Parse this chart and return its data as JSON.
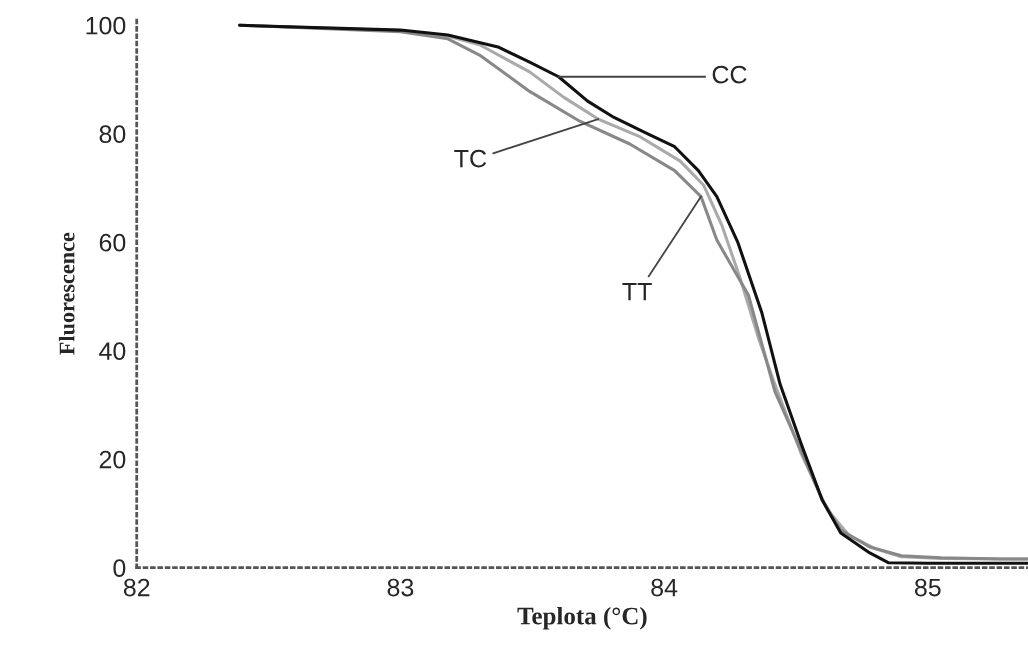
{
  "chart_data": {
    "type": "line",
    "xlabel": "Teplota (°C)",
    "ylabel": "Fluorescence",
    "xlim": [
      82,
      85.38
    ],
    "ylim": [
      0,
      101
    ],
    "xticks": [
      82,
      83,
      84,
      85
    ],
    "yticks": [
      0,
      20,
      40,
      60,
      80,
      100
    ],
    "grid": false,
    "legend": false,
    "marker": "none",
    "line_style": "solid",
    "series": [
      {
        "color": "#aaaaaa",
        "x": [
          82.39,
          83.0,
          83.18,
          83.3,
          83.49,
          83.62,
          83.75,
          83.91,
          84.06,
          84.15,
          84.22,
          84.29,
          84.36,
          84.42,
          84.52,
          84.62,
          84.7,
          84.8,
          84.9,
          85.05,
          85.28,
          85.38
        ],
        "values": [
          100,
          99.0,
          98.0,
          96.4,
          91.4,
          86.7,
          82.7,
          79.4,
          75.0,
          70.5,
          63.0,
          53.1,
          42.0,
          33.8,
          21.0,
          10.6,
          6.0,
          3.5,
          2.0,
          1.7,
          1.6,
          1.6
        ]
      },
      {
        "color": "#888888",
        "x": [
          82.39,
          83.0,
          83.18,
          83.3,
          83.49,
          83.68,
          83.87,
          84.04,
          84.14,
          84.2,
          84.32,
          84.42,
          84.52,
          84.6,
          84.67,
          84.78,
          84.9,
          85.05,
          85.28,
          85.38
        ],
        "values": [
          100,
          98.8,
          97.5,
          94.5,
          87.8,
          82.3,
          78.1,
          73.2,
          68.4,
          60.4,
          50.2,
          32.5,
          21.5,
          12.5,
          6.9,
          3.8,
          2.2,
          1.8,
          1.6,
          1.6
        ]
      },
      {
        "color": "#111111",
        "x": [
          82.39,
          83.0,
          83.18,
          83.37,
          83.49,
          83.6,
          83.71,
          83.81,
          83.94,
          84.04,
          84.13,
          84.2,
          84.28,
          84.37,
          84.44,
          84.52,
          84.6,
          84.67,
          84.78,
          84.85,
          85.0,
          85.2,
          85.38
        ],
        "values": [
          100,
          99.1,
          98.2,
          96.0,
          93.2,
          90.5,
          86.0,
          83.0,
          79.9,
          77.6,
          73.2,
          68.4,
          59.9,
          47.1,
          33.8,
          22.8,
          12.4,
          6.4,
          2.7,
          0.9,
          0.8,
          0.8,
          0.8
        ]
      }
    ],
    "annotations": [
      {
        "text": "CC",
        "x": 83.6,
        "y": 90.5
      },
      {
        "text": "TC",
        "x": 83.75,
        "y": 82.7
      },
      {
        "text": "TT",
        "x": 84.14,
        "y": 68.4
      }
    ]
  }
}
